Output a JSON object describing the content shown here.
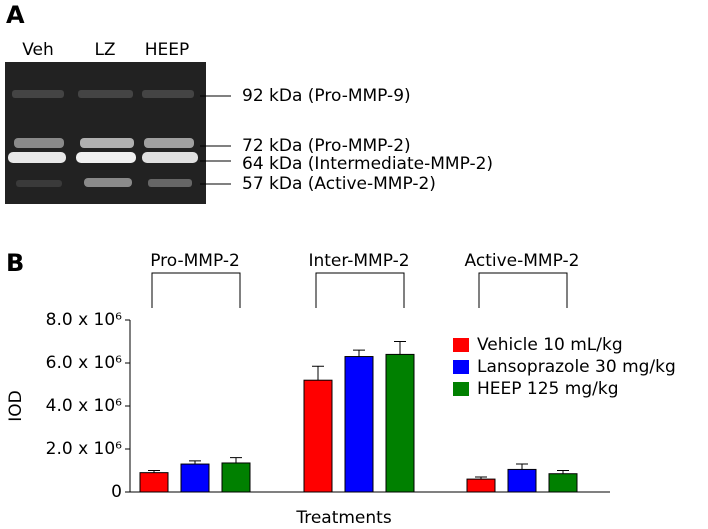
{
  "panel_a": {
    "label": "A",
    "lanes": [
      "Veh",
      "LZ",
      "HEEP"
    ],
    "bands": [
      "92 kDa (Pro-MMP-9)",
      "72 kDa (Pro-MMP-2)",
      "64 kDa (Intermediate-MMP-2)",
      "57 kDa (Active-MMP-2)"
    ]
  },
  "panel_b_label": "B",
  "chart_data": {
    "type": "bar",
    "xlabel": "Treatments",
    "ylabel": "IOD",
    "categories": [
      "Pro-MMP-2",
      "Inter-MMP-2",
      "Active-MMP-2"
    ],
    "series": [
      {
        "name": "Vehicle 10 mL/kg",
        "color": "#ff0000",
        "values": [
          900000,
          5200000,
          600000
        ],
        "errors": [
          100000,
          650000,
          100000
        ]
      },
      {
        "name": "Lansoprazole 30 mg/kg",
        "color": "#0000ff",
        "values": [
          1300000,
          6300000,
          1050000
        ],
        "errors": [
          150000,
          300000,
          250000
        ]
      },
      {
        "name": "HEEP 125 mg/kg",
        "color": "#008000",
        "values": [
          1350000,
          6400000,
          850000
        ],
        "errors": [
          250000,
          600000,
          150000
        ]
      }
    ],
    "ylim": [
      0,
      8000000
    ],
    "yticks": [
      0,
      {
        "value": 2000000,
        "label": "2.0 x 10⁶"
      },
      {
        "value": 4000000,
        "label": "4.0 x 10⁶"
      },
      {
        "value": 6000000,
        "label": "6.0 x 10⁶"
      },
      {
        "value": 8000000,
        "label": "8.0 x 10⁶"
      }
    ],
    "legend": "upper right"
  }
}
